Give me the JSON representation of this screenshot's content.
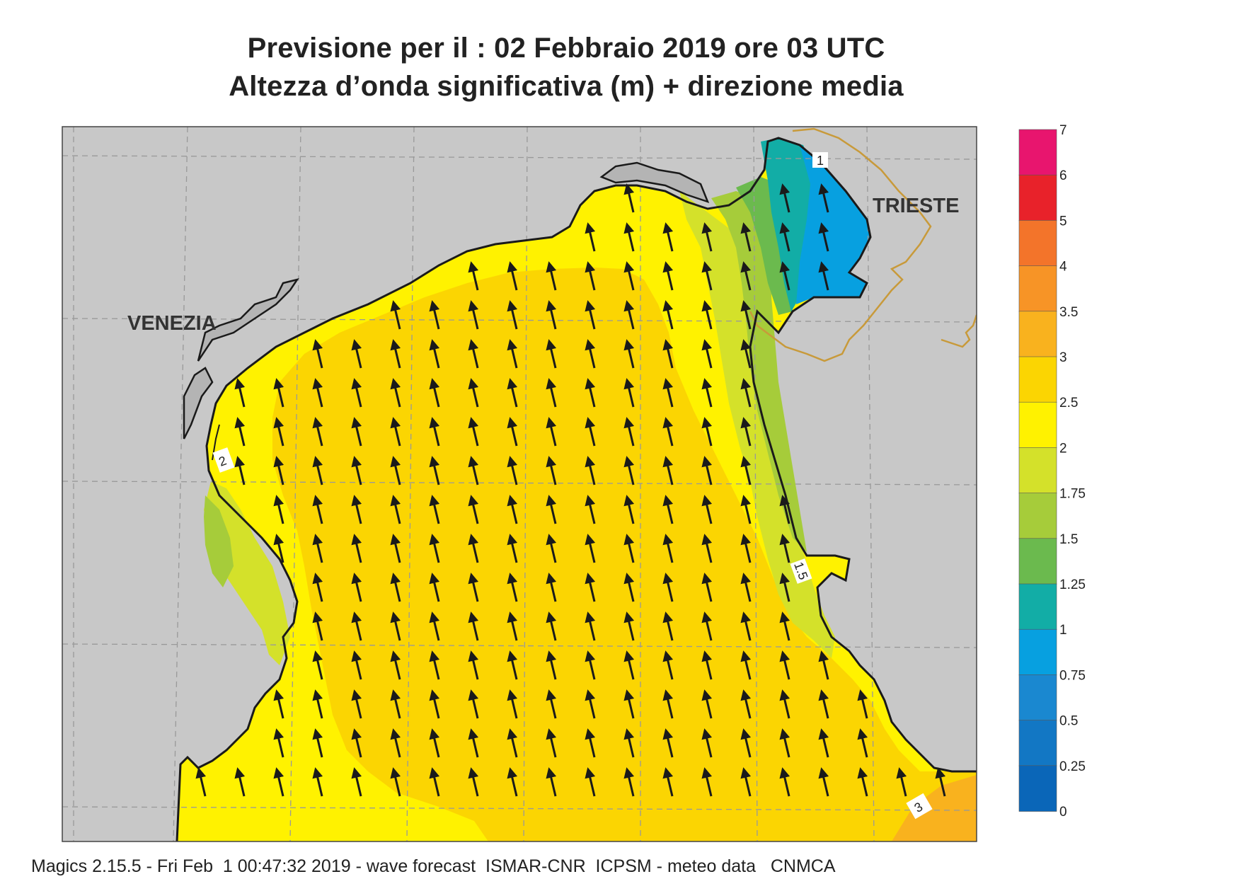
{
  "title": {
    "line1": "Previsione per il  :  02  Febbraio 2019   ore 03 UTC",
    "line2": "Altezza d’onda significativa (m) + direzione media"
  },
  "map": {
    "city_labels": [
      "VENEZIA",
      "TRIESTE"
    ],
    "contour_labels": [
      "2",
      "1",
      "3",
      "1.5"
    ],
    "arrow_direction": "north-northwest",
    "land_color": "#c8c8c8",
    "coast_color": "#1a1a1a",
    "border_color": "#c89a3a",
    "grid_color": "#999999"
  },
  "legend": {
    "labels": [
      "7",
      "6",
      "5",
      "4",
      "3.5",
      "3",
      "2.5",
      "2",
      "1.75",
      "1.5",
      "1.25",
      "1",
      "0.75",
      "0.5",
      "0.25",
      "0"
    ],
    "colors": [
      "#e8156e",
      "#e8222a",
      "#f3742a",
      "#f79426",
      "#f9b21e",
      "#fbd502",
      "#fff200",
      "#d4e12a",
      "#a6cc3a",
      "#6bba4e",
      "#12ada6",
      "#07a0e0",
      "#1a88d0",
      "#1277c4",
      "#0a66b8"
    ]
  },
  "footer": {
    "text": "Magics 2.15.5 - Fri Feb  1 00:47:32 2019 - wave forecast  ISMAR-CNR  ICPSM - meteo data   CNMCA"
  }
}
